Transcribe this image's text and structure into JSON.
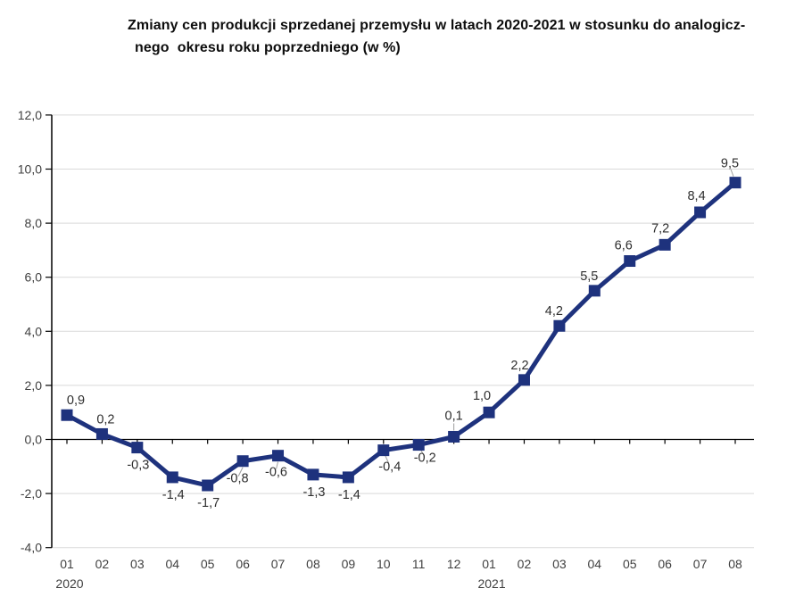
{
  "title": {
    "line1": "Zmiany cen produkcji sprzedanej przemysłu w latach 2020-2021 w stosunku do analogicz-",
    "line2": "nego  okresu roku poprzedniego (w %)"
  },
  "chart_data": {
    "type": "line",
    "title": "Zmiany cen produkcji sprzedanej przemysłu w latach 2020-2021 w stosunku do analogicznego okresu roku poprzedniego (w %)",
    "xlabel": "",
    "ylabel": "",
    "categories": [
      "01",
      "02",
      "03",
      "04",
      "05",
      "06",
      "07",
      "08",
      "09",
      "10",
      "11",
      "12",
      "01",
      "02",
      "03",
      "04",
      "05",
      "06",
      "07",
      "08"
    ],
    "year_labels": [
      {
        "index": 0,
        "label": "2020"
      },
      {
        "index": 12,
        "label": "2021"
      }
    ],
    "values": [
      0.9,
      0.2,
      -0.3,
      -1.4,
      -1.7,
      -0.8,
      -0.6,
      -1.3,
      -1.4,
      -0.4,
      -0.2,
      0.1,
      1.0,
      2.2,
      4.2,
      5.5,
      6.6,
      7.2,
      8.4,
      9.5
    ],
    "point_labels": [
      "0,9",
      "0,2",
      "-0,3",
      "-1,4",
      "-1,7",
      "-0,8",
      "-0,6",
      "-1,3",
      "-1,4",
      "-0,4",
      "-0,2",
      "0,1",
      "1,0",
      "2,2",
      "4,2",
      "5,5",
      "6,6",
      "7,2",
      "8,4",
      "9,5"
    ],
    "ylim": [
      -4,
      12
    ],
    "ytick_step": 2,
    "ytick_labels": [
      "-4,0",
      "-2,0",
      "0,0",
      "2,0",
      "4,0",
      "6,0",
      "8,0",
      "10,0",
      "12,0"
    ],
    "grid": true,
    "legend": "none",
    "series_color": "#1e327d",
    "grid_color": "#d9d9d9",
    "axis_color": "#000000",
    "label_color": "#2e2e2e",
    "decimal_separator": ","
  }
}
